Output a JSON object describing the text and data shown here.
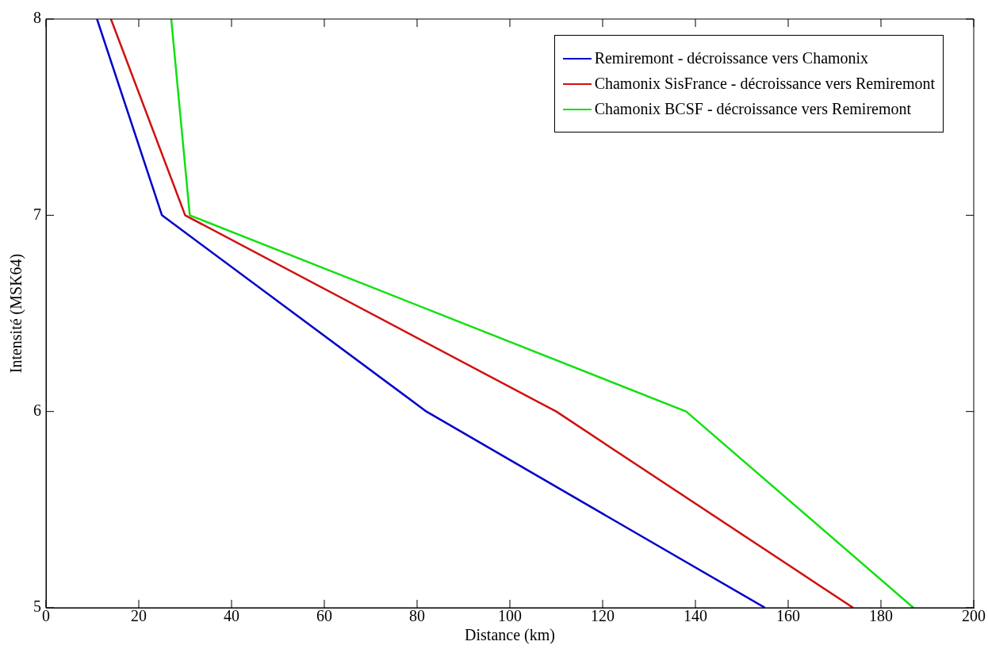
{
  "chart_data": {
    "type": "line",
    "xlabel": "Distance (km)",
    "ylabel": "Intensité (MSK64)",
    "xlim": [
      0,
      200
    ],
    "xticks": [
      0,
      20,
      40,
      60,
      80,
      100,
      120,
      140,
      160,
      180,
      200
    ],
    "ylim": [
      5,
      8
    ],
    "yticks": [
      5,
      6,
      7,
      8
    ],
    "grid": false,
    "legend": "top right",
    "marker": "none",
    "line_style": "solid",
    "series": [
      {
        "name": "Remiremont - décroissance vers Chamonix",
        "color": "#0000c8",
        "x": [
          11,
          25,
          82,
          155
        ],
        "values": [
          8,
          7,
          6,
          5
        ]
      },
      {
        "name": "Chamonix SisFrance - décroissance vers Remiremont",
        "color": "#d01010",
        "x": [
          14,
          30,
          110,
          174
        ],
        "values": [
          8,
          7,
          6,
          5
        ]
      },
      {
        "name": "Chamonix BCSF - décroissance vers Remiremont",
        "color": "#10e010",
        "x": [
          27,
          31,
          138,
          187
        ],
        "values": [
          8,
          7,
          6,
          5
        ]
      }
    ]
  }
}
